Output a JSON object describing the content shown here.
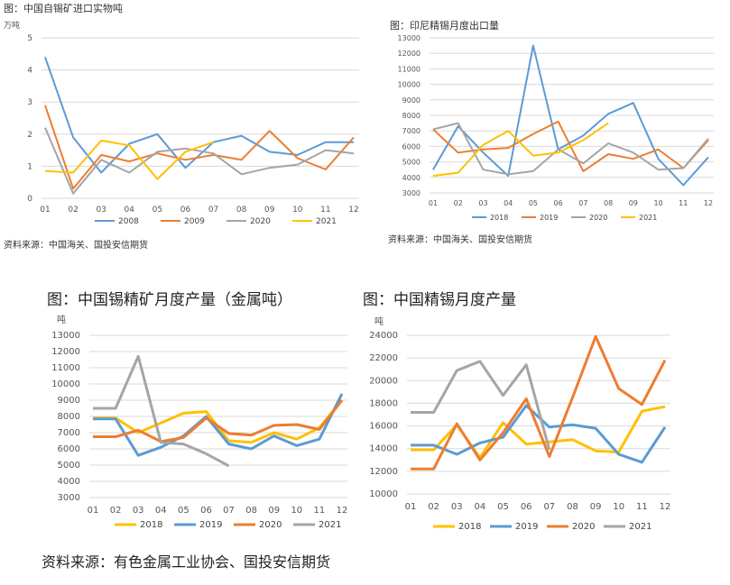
{
  "labels": {
    "c1_title": "图：中国自锡矿进口实物吨",
    "c2_title": "图：印尼精锡月度出口量",
    "c3_title": "图：中国锡精矿月度产量（金属吨）",
    "c4_title": "图：中国精锡月度产量",
    "source_top_left": "资料来源：中国海关、国投安信期货",
    "source_top_right": "资料来源：中国海关、国投安信期货",
    "source_bottom": "资料来源：有色金属工业协会、国投安信期货"
  },
  "chart_data": [
    {
      "type": "line",
      "title": "图：中国自锡矿进口实物吨",
      "ylabel": "万吨",
      "ylim": [
        0,
        5
      ],
      "yticks": [
        0,
        1,
        2,
        3,
        4,
        5
      ],
      "categories": [
        "01",
        "02",
        "03",
        "04",
        "05",
        "06",
        "07",
        "08",
        "09",
        "10",
        "11",
        "12"
      ],
      "grid": true,
      "legend": "bottom",
      "series": [
        {
          "name": "2008",
          "color": "#5b9bd5",
          "values": [
            4.4,
            1.9,
            0.8,
            1.7,
            2.0,
            0.95,
            1.75,
            1.95,
            1.45,
            1.35,
            1.75,
            1.75
          ]
        },
        {
          "name": "2009",
          "color": "#ed7d31",
          "values": [
            2.9,
            0.3,
            1.35,
            1.15,
            1.4,
            1.2,
            1.35,
            1.2,
            2.1,
            1.25,
            0.9,
            1.9
          ]
        },
        {
          "name": "2020",
          "color": "#a5a5a5",
          "values": [
            2.2,
            0.15,
            1.2,
            0.8,
            1.45,
            1.55,
            1.4,
            0.75,
            0.95,
            1.05,
            1.5,
            1.4
          ]
        },
        {
          "name": "2021",
          "color": "#ffc000",
          "values": [
            0.85,
            0.8,
            1.8,
            1.65,
            0.6,
            1.45,
            1.75,
            null,
            null,
            null,
            null,
            null
          ]
        }
      ]
    },
    {
      "type": "line",
      "title": "图：印尼精锡月度出口量",
      "ylim": [
        3000,
        13000
      ],
      "yticks": [
        3000,
        4000,
        5000,
        6000,
        7000,
        8000,
        9000,
        10000,
        11000,
        12000,
        13000
      ],
      "categories": [
        "01",
        "02",
        "03",
        "04",
        "05",
        "06",
        "07",
        "08",
        "09",
        "10",
        "11",
        "12"
      ],
      "grid": true,
      "legend": "bottom",
      "series": [
        {
          "name": "2018",
          "color": "#5b9bd5",
          "values": [
            4500,
            7300,
            5600,
            4100,
            12500,
            5800,
            6700,
            8100,
            8800,
            5200,
            3500,
            5300
          ]
        },
        {
          "name": "2019",
          "color": "#ed7d31",
          "values": [
            7100,
            5600,
            5800,
            5900,
            6800,
            7600,
            4400,
            5500,
            5200,
            5800,
            4600,
            6400
          ]
        },
        {
          "name": "2020",
          "color": "#a5a5a5",
          "values": [
            7100,
            7500,
            4500,
            4200,
            4400,
            5800,
            4900,
            6200,
            5600,
            4500,
            4600,
            6500
          ]
        },
        {
          "name": "2021",
          "color": "#ffc000",
          "values": [
            4100,
            4300,
            6100,
            7000,
            5400,
            5600,
            6400,
            7500,
            null,
            null,
            null,
            null
          ]
        }
      ]
    },
    {
      "type": "line",
      "title": "图：中国锡精矿月度产量（金属吨）",
      "ylabel": "吨",
      "ylim": [
        3000,
        13000
      ],
      "yticks": [
        3000,
        4000,
        5000,
        6000,
        7000,
        8000,
        9000,
        10000,
        11000,
        12000,
        13000
      ],
      "categories": [
        "01",
        "02",
        "03",
        "04",
        "05",
        "06",
        "07",
        "08",
        "09",
        "10",
        "11",
        "12"
      ],
      "grid": true,
      "legend": "bottom",
      "series": [
        {
          "name": "2018",
          "color": "#ffc000",
          "values": [
            7900,
            7900,
            7000,
            7600,
            8200,
            8300,
            6500,
            6400,
            7000,
            6600,
            7300,
            9000
          ]
        },
        {
          "name": "2019",
          "color": "#5b9bd5",
          "values": [
            7850,
            7850,
            5600,
            6100,
            6800,
            8000,
            6300,
            6000,
            6800,
            6200,
            6600,
            9400
          ]
        },
        {
          "name": "2020",
          "color": "#ed7d31",
          "values": [
            6750,
            6750,
            7150,
            6450,
            6700,
            7900,
            6950,
            6850,
            7450,
            7500,
            7200,
            9000
          ]
        },
        {
          "name": "2021",
          "color": "#a5a5a5",
          "values": [
            8500,
            8500,
            11700,
            6400,
            6300,
            5700,
            4950,
            null,
            null,
            null,
            null,
            null
          ]
        }
      ]
    },
    {
      "type": "line",
      "title": "图：中国精锡月度产量",
      "ylabel": "吨",
      "ylim": [
        10000,
        24000
      ],
      "yticks": [
        10000,
        12000,
        14000,
        16000,
        18000,
        20000,
        22000,
        24000
      ],
      "categories": [
        "01",
        "02",
        "03",
        "04",
        "05",
        "06",
        "07",
        "08",
        "09",
        "10",
        "11",
        "12"
      ],
      "grid": true,
      "legend": "bottom",
      "series": [
        {
          "name": "2018",
          "color": "#ffc000",
          "values": [
            13900,
            13900,
            16100,
            13200,
            16300,
            14400,
            14600,
            14800,
            13800,
            13700,
            17300,
            17700
          ]
        },
        {
          "name": "2019",
          "color": "#5b9bd5",
          "values": [
            14300,
            14300,
            13500,
            14500,
            15000,
            17800,
            15900,
            16100,
            15800,
            13500,
            12800,
            15900
          ]
        },
        {
          "name": "2020",
          "color": "#ed7d31",
          "values": [
            12200,
            12200,
            16200,
            13000,
            15400,
            18400,
            13300,
            18500,
            23900,
            19300,
            17900,
            21800
          ]
        },
        {
          "name": "2021",
          "color": "#a5a5a5",
          "values": [
            17200,
            17200,
            20900,
            21700,
            18700,
            21400,
            13900,
            null,
            null,
            null,
            null,
            null
          ]
        }
      ]
    }
  ]
}
